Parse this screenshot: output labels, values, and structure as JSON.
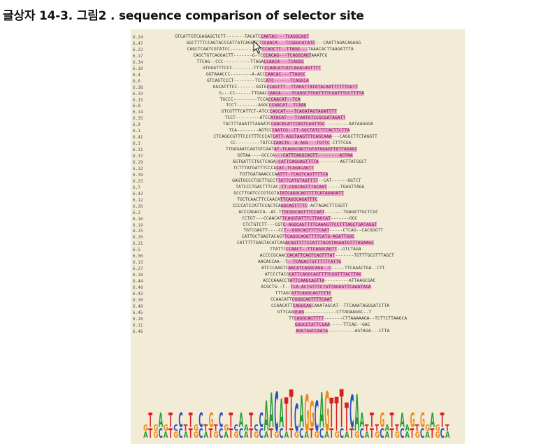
{
  "title": "글상자 14-3. 그림2 . sequence comparison of selector site",
  "colors": {
    "highlight": "#f0a6d0",
    "panel": "#f2ecd6",
    "A": "#2a9a3a",
    "C": "#2a4fbf",
    "G": "#f08a1a",
    "T": "#d82020"
  },
  "rows": [
    {
      "id": "6.24",
      "pre": "GTCATTGTCGAGAGCTCTT-------TACATC",
      "mid": "CAATAC---TCAGGCAGT",
      "post": ""
    },
    {
      "id": "6.47",
      "pre": "GGCTTTTCCAGTACCCATTATCAGGTCT",
      "mid": "CCAACA---TCGGGCATATC",
      "post": "---CAATTAGACAGAGG"
    },
    {
      "id": "6.22",
      "pre": "CAGCTCAATCGTATCC---------ACT",
      "mid": "CCAGCTT--TTAGG---",
      "post": "TAAACACTTAAGATTTA"
    },
    {
      "id": "6.17",
      "pre": "CAGCTGTCAGGACTT-------G-TC",
      "mid": "CCACAG---TCAGGCAGT",
      "post": "AAATCG"
    },
    {
      "id": "6.34",
      "pre": "TTCAG--CCC----------TTAGA",
      "mid": "CCAACA---TCAGGC",
      "post": ""
    },
    {
      "id": "6.10",
      "pre": "GTGGGTTTCCC--------TTTC",
      "mid": "CCAACATCATCAGACAGTTTT",
      "post": ""
    },
    {
      "id": "6.4",
      "pre": "GGTAAACCC--------A-ACC",
      "mid": "CAACAC---TTAGGC",
      "post": ""
    },
    {
      "id": "6.6",
      "pre": "GTCAGTCCCT--------TCCC",
      "mid": "ATC------TCAGGCA",
      "post": ""
    },
    {
      "id": "6.38",
      "pre": "GGCATTTCC-------GGTG",
      "mid": "CCAGTTT--TTAGGTTATATACAATTTTTTGGTT",
      "post": ""
    },
    {
      "id": "6.33",
      "pre": "G---CC------TTGAAC",
      "mid": "CAACA----TCAGGCTTGGTTTTCGATTTCCTTTTA",
      "post": ""
    },
    {
      "id": "6.15",
      "pre": "TGCCC---------TCCA",
      "mid": "CCAACAT--TCA",
      "post": ""
    },
    {
      "id": "6.8",
      "pre": "TCCT--------AGGC",
      "mid": "CCAACAT--TCAAG",
      "post": ""
    },
    {
      "id": "6.14",
      "pre": "GTCGTTTCATTCT-ATCC",
      "mid": "CAGCAT---TCAGATAGTAGATTTT",
      "post": ""
    },
    {
      "id": "6.35",
      "pre": "TCCT---------ATCC",
      "mid": "ATACAT---TCAATGTCCGCGATAGATT",
      "post": ""
    },
    {
      "id": "6.9",
      "pre": "TACTTTAAATTTAAAATC",
      "mid": "CAACACATTCAGTCAGTTGC",
      "post": "---------AATAAGGGA"
    },
    {
      "id": "6.1",
      "pre": "TCA--------AGTCC",
      "mid": "CAATCG--TT-GGCTATCTTCACTTCTTA",
      "post": ""
    },
    {
      "id": "6.41",
      "pre": "CTCAGGCGTTTCCCTTTCCCAT",
      "mid": "CATT-AGGTAAGTTTCAGCAAA",
      "post": "---CAGGCTTCTAGGTT"
    },
    {
      "id": "6.3",
      "pre": "CC---------TATCC",
      "mid": "CAACTG--A-AGG---TGTTC",
      "post": "-CTTTCGA"
    },
    {
      "id": "6.31",
      "pre": "TTGGGAATCAGTGTCAAT",
      "mid": "AT-TCAGGCAGTTGTATGGAGTTGTTAGAGC",
      "post": ""
    },
    {
      "id": "6.37",
      "pre": "GGTAA----GCCCA",
      "mid": "---CATTCAGGCAGTT--------AGTAA",
      "post": ""
    },
    {
      "id": "6.29",
      "pre": "GGTGATTCTGCTCAGA",
      "mid": "-CATTCAGGAGTTTTA",
      "post": "--------AGTTATGGCT"
    },
    {
      "id": "6.32",
      "pre": "TCTTTATGATTTCCCA",
      "mid": "CAT-TCAGACAGTT",
      "post": ""
    },
    {
      "id": "6.39",
      "pre": "TGTTGATAAACCCA",
      "mid": "ATTT-TCAGTCAGTTTTCA",
      "post": ""
    },
    {
      "id": "6.23",
      "pre": "GAGTGCCCTGGTTGCCT",
      "mid": "TATTCATGTAGTTTT",
      "post": "--CAT------GGTCT"
    },
    {
      "id": "6.7",
      "pre": "TATCCCTGACTTTCAC",
      "mid": "-TT-CGGCAGTTTACAAT",
      "post": "-----TGAGTTAGG"
    },
    {
      "id": "6.42",
      "pre": "GCCTTGATCCCGTCGTA",
      "mid": "TATCAGGCAGTTTTCATAGAGATT",
      "post": ""
    },
    {
      "id": "6.12",
      "pre": "TGCTCAACTTCCAACA",
      "mid": "TTCAGGCAGATTTC",
      "post": ""
    },
    {
      "id": "6.26",
      "pre": "CCCCATCCATTCCACTCA",
      "mid": "GGCAGTTTTC",
      "post": "-ACTAGACTTCGGTT"
    },
    {
      "id": "6.2",
      "pre": "ACCCAGACCA--AC-T",
      "mid": "TGCGGCAGTTTCCAAT",
      "post": "-------TGAGATTGCTCGC"
    },
    {
      "id": "6.16",
      "pre": "CCTGT---CCAACAT",
      "mid": "TCAGGTATTTCTTAGCAT",
      "post": "-------GGC"
    },
    {
      "id": "6.19",
      "pre": "CTCTGTCTT---CGT",
      "mid": "C-AGGCAGTTTTCAAAGTTCCTTTAGCTGATAGGT",
      "post": ""
    },
    {
      "id": "6.25",
      "pre": "TGTCGAGTT----CC",
      "mid": "T--GGGCAGTTTTCAAT",
      "post": "-----CTCAG--CACGGGTT"
    },
    {
      "id": "6.20",
      "pre": "CATTGCTGAGTACAGT",
      "mid": "TCAGGCAGGTTTTCATG-AGATTGGG",
      "post": ""
    },
    {
      "id": "6.21",
      "pre": "CATTTTTGAGTACATCAG",
      "mid": "ACGGTTTTCCATTTACATAGAATGTTTAGAAGC",
      "post": ""
    },
    {
      "id": "6.5",
      "pre": "TTATTC",
      "mid": "CCAACT--TTCAGGCAGTT",
      "post": "--GTCTAGA"
    },
    {
      "id": "6.36",
      "pre": "ACCCCGCAAC",
      "mid": "CACATTCAGTCAGTTTAT",
      "post": "-------TGTTTGCGTTTAGCT"
    },
    {
      "id": "6.13",
      "pre": "AACACCAA--T",
      "mid": "--TCAGACTGTTTTTTATTG",
      "post": ""
    },
    {
      "id": "6.27",
      "pre": "ATCCCAAGTC",
      "mid": "AACATCAGGCAGA--C",
      "post": "-----TTCAAACTGA--CTT"
    },
    {
      "id": "6.28",
      "pre": "ATCCCTACG",
      "mid": "CATTCAGGCAGTTTTCGGTTTACTTAG",
      "post": ""
    },
    {
      "id": "6.44",
      "pre": "ACCCAAACCT",
      "mid": "ATTCAAGCAGTTA",
      "post": "---------ATTAAGCGAC"
    },
    {
      "id": "6.40",
      "pre": "ACGCTG--T--",
      "mid": "TCA-ACTGTTTCTGTTAGGGTTCAAATAGA",
      "post": ""
    },
    {
      "id": "6.43",
      "pre": "TTTAGC",
      "mid": "ATTCAGGCAGTTTTC",
      "post": ""
    },
    {
      "id": "6.30",
      "pre": "CCAACATT",
      "mid": "CGGGCAGTTTTCAAT",
      "post": ""
    },
    {
      "id": "6.48",
      "pre": "CCAACATT",
      "mid": "CAGGCAG",
      "post": "CAAATAGCAT--TTCAAATAGGGATCTTA"
    },
    {
      "id": "6.45",
      "pre": "GTTCAG",
      "mid": "GCAG",
      "post": "------------CTTAGAAGGC--T"
    },
    {
      "id": "6.18",
      "pre": "TT",
      "mid": "CAGGCAGTTTT",
      "post": "-------CTTAAAAAGA--TCTTCTTAAGCA"
    },
    {
      "id": "6.11",
      "pre": "",
      "mid": "GGGCGTATTCGAA",
      "post": "-----TTCAG--GAC"
    },
    {
      "id": "6.46",
      "pre": "",
      "mid": "AGGTAGCCAATA",
      "post": "----------AGTAGA---CTTA"
    }
  ]
}
